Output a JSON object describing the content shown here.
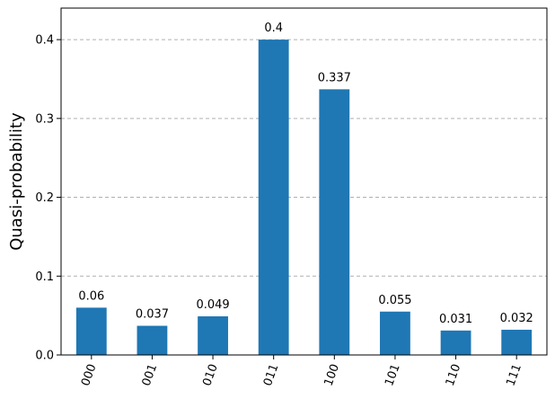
{
  "chart_data": {
    "type": "bar",
    "categories": [
      "000",
      "001",
      "010",
      "011",
      "100",
      "101",
      "110",
      "111"
    ],
    "values": [
      0.06,
      0.037,
      0.049,
      0.4,
      0.337,
      0.055,
      0.031,
      0.032
    ],
    "value_labels": [
      "0.06",
      "0.037",
      "0.049",
      "0.4",
      "0.337",
      "0.055",
      "0.031",
      "0.032"
    ],
    "ylabel": "Quasi-probability",
    "xlabel": "",
    "ylim": [
      0,
      0.44
    ],
    "yticks": [
      0.0,
      0.1,
      0.2,
      0.3,
      0.4
    ],
    "ytick_labels": [
      "0.0",
      "0.1",
      "0.2",
      "0.3",
      "0.4"
    ],
    "grid": "horizontal dashed",
    "bar_color": "#1f77b4",
    "grid_color": "#b0b0b0",
    "xtick_rotation_deg": 70
  }
}
